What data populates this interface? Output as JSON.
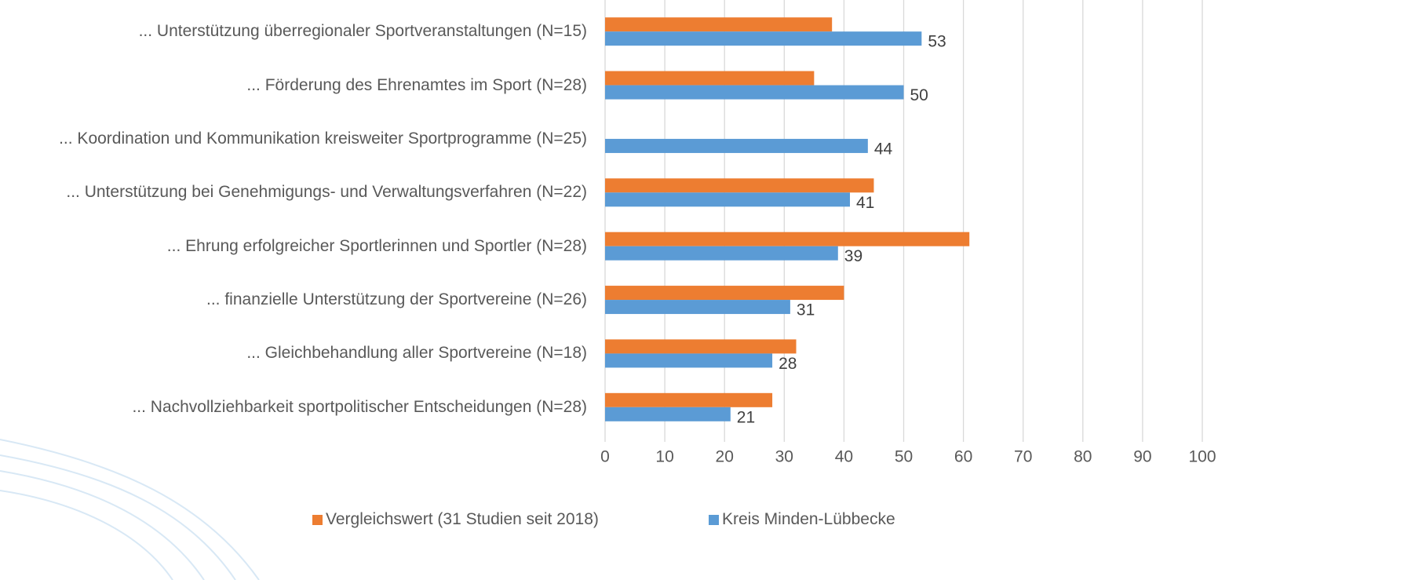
{
  "chart_data": {
    "type": "hbar",
    "categories": [
      "... Unterstützung überregionaler Sportveranstaltungen (N=15)",
      "... Förderung des Ehrenamtes im Sport (N=28)",
      "... Koordination und Kommunikation kreisweiter Sportprogramme (N=25)",
      "... Unterstützung bei Genehmigungs- und Verwaltungsverfahren (N=22)",
      "... Ehrung erfolgreicher Sportlerinnen und Sportler (N=28)",
      "... finanzielle Unterstützung der Sportvereine (N=26)",
      "... Gleichbehandlung aller Sportvereine (N=18)",
      "... Nachvollziehbarkeit sportpolitischer Entscheidungen (N=28)"
    ],
    "series": [
      {
        "name": "Vergleichswert (31 Studien seit 2018)",
        "color": "#ED7D31",
        "values": [
          38,
          35,
          null,
          45,
          61,
          40,
          32,
          28
        ],
        "show_labels": false
      },
      {
        "name": "Kreis Minden-Lübbecke",
        "color": "#5B9BD5",
        "values": [
          53,
          50,
          44,
          41,
          39,
          31,
          28,
          21
        ],
        "show_labels": true
      }
    ],
    "xlim": [
      0,
      100
    ],
    "xticks": [
      0,
      10,
      20,
      30,
      40,
      50,
      60,
      70,
      80,
      90,
      100
    ],
    "grid": true,
    "legend": "bottom"
  }
}
